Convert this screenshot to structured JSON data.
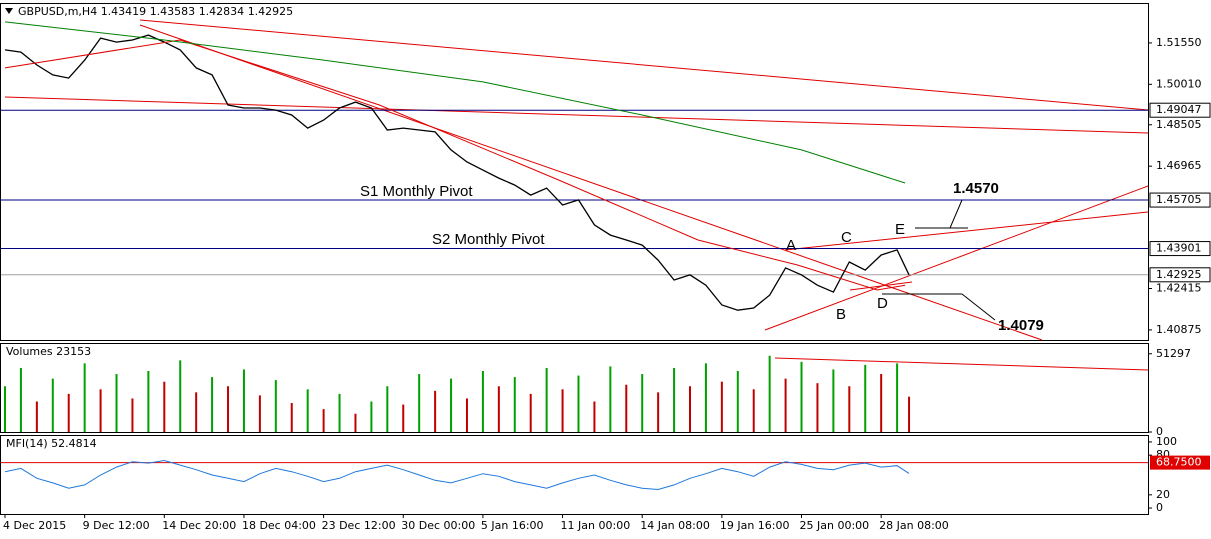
{
  "chart_data": [
    {
      "type": "line",
      "title": "GBPUSD,m,H4",
      "header_values": [
        1.43419,
        1.43583,
        1.42834,
        1.42925
      ],
      "x": [
        0,
        4,
        8,
        12,
        16,
        20,
        24,
        28,
        32,
        36,
        40,
        44,
        48,
        52,
        56,
        60,
        64,
        68,
        72,
        76,
        80,
        84,
        88,
        92,
        96,
        100,
        104,
        108,
        112,
        116,
        120,
        124,
        128,
        132,
        136,
        140,
        144,
        148,
        152,
        156,
        160,
        164,
        168,
        172,
        176,
        180,
        184,
        188,
        192,
        196,
        200,
        204,
        208,
        212,
        216,
        220,
        224,
        227
      ],
      "xlim": [
        0,
        286
      ],
      "ylim": [
        1.405,
        1.5296
      ],
      "yticks": [
        {
          "value": 1.5155,
          "label": "1.51550"
        },
        {
          "value": 1.5001,
          "label": "1.50010"
        },
        1.48505,
        1.46965,
        1.42415,
        1.40875
      ],
      "series": [
        {
          "color": "#000000",
          "values": [
            1.5129,
            1.5121,
            1.5073,
            1.5036,
            1.5024,
            1.5091,
            1.5173,
            1.5158,
            1.5166,
            1.5184,
            1.5158,
            1.5129,
            1.5062,
            1.5036,
            1.4924,
            1.4913,
            1.4913,
            1.4905,
            1.4887,
            1.4838,
            1.4868,
            1.4913,
            1.4935,
            1.4913,
            1.4831,
            1.4838,
            1.4831,
            1.4824,
            1.4757,
            1.4712,
            1.4682,
            1.4652,
            1.4626,
            1.4589,
            1.4615,
            1.4552,
            1.4571,
            1.4478,
            1.444,
            1.4422,
            1.4403,
            1.4347,
            1.4273,
            1.4292,
            1.4254,
            1.418,
            1.4161,
            1.4169,
            1.4217,
            1.4318,
            1.4292,
            1.4254,
            1.4228,
            1.434,
            1.431,
            1.4366,
            1.4385,
            1.42925
          ]
        },
        {
          "color": "#e00000",
          "x": [
            0,
            44,
            94,
            139,
            174,
            199,
            219,
            226
          ],
          "values": [
            1.5062,
            1.5166,
            1.4924,
            1.4645,
            1.4422,
            1.4329,
            1.4236,
            1.4254
          ]
        },
        {
          "color": "#008000",
          "x": [
            0,
            40,
            80,
            120,
            160,
            200,
            226
          ],
          "values": [
            1.5233,
            1.5166,
            1.5091,
            1.501,
            1.4887,
            1.4757,
            1.4634
          ]
        }
      ],
      "levels": [
        {
          "value": 1.49047,
          "color": "#000080"
        },
        {
          "value": 1.45705,
          "color": "#000080"
        },
        {
          "value": 1.43901,
          "color": "#000080"
        },
        {
          "value": 1.42925,
          "color": "#a0a0a0"
        }
      ],
      "annotations": [
        "S1 Monthly Pivot",
        "S2 Monthly Pivot",
        "A",
        "B",
        "C",
        "D",
        "E",
        "1.4570",
        "1.4079"
      ]
    },
    {
      "type": "bar",
      "title": "Volumes",
      "title_value": 23153,
      "x": [
        0,
        4,
        8,
        12,
        16,
        20,
        24,
        28,
        32,
        36,
        40,
        44,
        48,
        52,
        56,
        60,
        64,
        68,
        72,
        76,
        80,
        84,
        88,
        92,
        96,
        100,
        104,
        108,
        112,
        116,
        120,
        124,
        128,
        132,
        136,
        140,
        144,
        148,
        152,
        156,
        160,
        164,
        168,
        172,
        176,
        180,
        184,
        188,
        192,
        196,
        200,
        204,
        208,
        212,
        216,
        220,
        224,
        227
      ],
      "xlim": [
        0,
        286
      ],
      "ylim": [
        0,
        57700
      ],
      "yticks": [
        0,
        51297
      ],
      "up_color": "#00a000",
      "down_color": "#c00000",
      "values": [
        30000,
        42000,
        20000,
        35000,
        25000,
        45000,
        28000,
        38000,
        22000,
        40000,
        33000,
        47000,
        26000,
        36000,
        30000,
        41000,
        24000,
        34000,
        19000,
        28000,
        15000,
        25000,
        12000,
        20000,
        30000,
        18000,
        38000,
        27000,
        35000,
        22000,
        40000,
        30000,
        36000,
        25000,
        42000,
        28000,
        37000,
        20000,
        43000,
        31000,
        38000,
        26000,
        42000,
        30000,
        45000,
        33000,
        40000,
        28000,
        50000,
        35000,
        46000,
        32000,
        41000,
        30000,
        44000,
        38000,
        45000,
        23153
      ]
    },
    {
      "type": "line",
      "title": "MFI(14)",
      "title_value": 52.4814,
      "x": [
        0,
        4,
        8,
        12,
        16,
        20,
        24,
        28,
        32,
        36,
        40,
        44,
        48,
        52,
        56,
        60,
        64,
        68,
        72,
        76,
        80,
        84,
        88,
        92,
        96,
        100,
        104,
        108,
        112,
        116,
        120,
        124,
        128,
        132,
        136,
        140,
        144,
        148,
        152,
        156,
        160,
        164,
        168,
        172,
        176,
        180,
        184,
        188,
        192,
        196,
        200,
        204,
        208,
        212,
        216,
        220,
        224,
        227
      ],
      "xlim": [
        0,
        286
      ],
      "ylim": [
        -9,
        109
      ],
      "yticks": [
        0,
        20,
        80,
        100
      ],
      "color": "#1e78dc",
      "values": [
        55,
        60,
        45,
        38,
        30,
        35,
        50,
        62,
        70,
        68,
        72,
        65,
        58,
        50,
        45,
        40,
        52,
        60,
        55,
        48,
        40,
        45,
        55,
        60,
        65,
        58,
        50,
        42,
        38,
        45,
        52,
        48,
        40,
        35,
        30,
        38,
        45,
        50,
        42,
        35,
        30,
        28,
        35,
        45,
        52,
        60,
        55,
        48,
        62,
        70,
        66,
        60,
        58,
        65,
        68,
        62,
        64,
        52.48
      ],
      "level": {
        "value": 68.75,
        "label": "68.7500",
        "color": "#e00000"
      },
      "xticks": [
        {
          "value": 0,
          "label": "4 Dec 2015"
        },
        {
          "value": 20,
          "label": "9 Dec 12:00"
        },
        {
          "value": 40,
          "label": "14 Dec 20:00"
        },
        {
          "value": 60,
          "label": "18 Dec 04:00"
        },
        {
          "value": 80,
          "label": "23 Dec 12:00"
        },
        {
          "value": 100,
          "label": "30 Dec 00:00"
        },
        {
          "value": 120,
          "label": "5 Jan 16:00"
        },
        {
          "value": 140,
          "label": "11 Jan 00:00"
        },
        {
          "value": 160,
          "label": "14 Jan 08:00"
        },
        {
          "value": 180,
          "label": "19 Jan 16:00"
        },
        {
          "value": 200,
          "label": "25 Jan 00:00"
        },
        {
          "value": 220,
          "label": "28 Jan 08:00"
        }
      ]
    }
  ]
}
